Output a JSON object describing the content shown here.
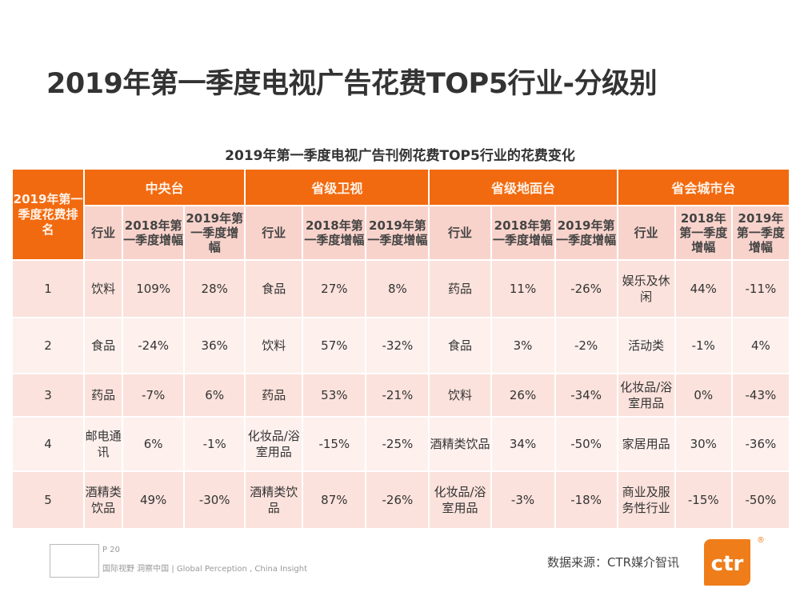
{
  "title": "2019年第一季度电视广告花费TOP5行业-分级别",
  "subtitle": "2019年第一季度电视广告刊例花费TOP5行业的花费变化",
  "rank_header": "2019年第一季度花费排名",
  "groups": [
    "中央台",
    "省级卫视",
    "省级地面台",
    "省会城市台"
  ],
  "sub_headers": [
    "行业",
    "2018年第一季度增幅",
    "2019年第一季度增幅"
  ],
  "rows": [
    {
      "rank": "1",
      "cells": [
        "饮料",
        "109%",
        "28%",
        "食品",
        "27%",
        "8%",
        "药品",
        "11%",
        "-26%",
        "娱乐及休闲",
        "44%",
        "-11%"
      ]
    },
    {
      "rank": "2",
      "cells": [
        "食品",
        "-24%",
        "36%",
        "饮料",
        "57%",
        "-32%",
        "食品",
        "3%",
        "-2%",
        "活动类",
        "-1%",
        "4%"
      ]
    },
    {
      "rank": "3",
      "cells": [
        "药品",
        "-7%",
        "6%",
        "药品",
        "53%",
        "-21%",
        "饮料",
        "26%",
        "-34%",
        "化妆品/浴室用品",
        "0%",
        "-43%"
      ]
    },
    {
      "rank": "4",
      "cells": [
        "邮电通讯",
        "6%",
        "-1%",
        "化妆品/浴室用品",
        "-15%",
        "-25%",
        "酒精类饮品",
        "34%",
        "-50%",
        "家居用品",
        "30%",
        "-36%"
      ]
    },
    {
      "rank": "5",
      "cells": [
        "酒精类饮品",
        "49%",
        "-30%",
        "酒精类饮品",
        "87%",
        "-26%",
        "化妆品/浴室用品",
        "-3%",
        "-18%",
        "商业及服务性行业",
        "-15%",
        "-50%"
      ]
    }
  ],
  "footer": {
    "page": "P 20",
    "slogan": "国际视野 洞察中国 | Global Perception , China Insight",
    "source": "数据来源：CTR媒介智讯",
    "logo": "ctr"
  },
  "colors": {
    "accent": "#f26a10",
    "header_sub": "#f8d3cb",
    "row_odd": "#fbe2dc",
    "row_even": "#fdf0ed"
  }
}
